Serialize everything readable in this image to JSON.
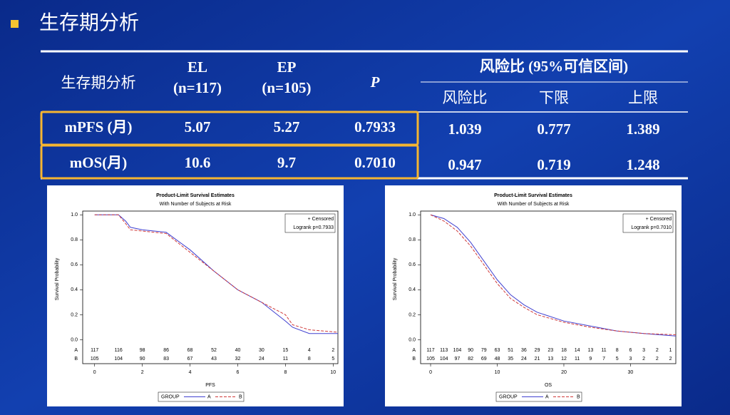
{
  "header": {
    "title": "生存期分析"
  },
  "table": {
    "columns": [
      "生存期分析",
      "EL",
      "EP",
      "P"
    ],
    "column_notes": [
      "(n=117)",
      "(n=105)"
    ],
    "group_header": "风险比 (95%可信区间)",
    "sub_columns": [
      "风险比",
      "下限",
      "上限"
    ],
    "rows": [
      [
        "mPFS (月)",
        "5.07",
        "5.27",
        "0.7933",
        "1.039",
        "0.777",
        "1.389"
      ],
      [
        "mOS(月)",
        "10.6",
        "9.7",
        "0.7010",
        "0.947",
        "0.719",
        "1.248"
      ]
    ]
  },
  "chart_data": [
    {
      "type": "line",
      "title": "Product-Limit Survival Estimates",
      "subtitle": "With Number of Subjects at Risk",
      "x_label": "PFS",
      "y_label": "Survival Probability",
      "xlim": [
        -0.5,
        10.2
      ],
      "xticks": [
        0,
        2,
        4,
        6,
        8,
        10
      ],
      "ylim": [
        -0.06,
        1.03
      ],
      "yticks": [
        {
          "value": 0,
          "label": "0.0"
        },
        0.2,
        0.4,
        0.6,
        0.8,
        {
          "value": 1,
          "label": "1.0"
        }
      ],
      "x": [
        0,
        1,
        1.3,
        1.5,
        2,
        3,
        4,
        5,
        6,
        7,
        8,
        8.3,
        9,
        10.2
      ],
      "series": [
        {
          "name": "A",
          "color": "#4040d0",
          "dashed": false,
          "values": [
            1,
            1,
            0.95,
            0.9,
            0.88,
            0.86,
            0.72,
            0.55,
            0.4,
            0.3,
            0.15,
            0.1,
            0.05,
            0.05
          ]
        },
        {
          "name": "B",
          "color": "#d03a3a",
          "dashed": true,
          "values": [
            1,
            1,
            0.93,
            0.88,
            0.87,
            0.85,
            0.7,
            0.55,
            0.4,
            0.3,
            0.2,
            0.12,
            0.08,
            0.06
          ]
        }
      ],
      "legend_title": "GROUP",
      "annotations": [
        "+ Censored",
        "Logrank p=0.7933"
      ],
      "risk_table": {
        "x": [
          0,
          1,
          2,
          3,
          4,
          5,
          6,
          7,
          8,
          9,
          10
        ],
        "rows": [
          [
            117,
            116,
            98,
            86,
            68,
            52,
            40,
            30,
            15,
            4,
            2
          ],
          [
            105,
            104,
            90,
            83,
            67,
            43,
            32,
            24,
            11,
            8,
            5
          ]
        ]
      }
    },
    {
      "type": "line",
      "title": "Product-Limit Survival Estimates",
      "subtitle": "With Number of Subjects at Risk",
      "x_label": "OS",
      "y_label": "Survival Probability",
      "xlim": [
        -1.5,
        36.8
      ],
      "xticks": [
        0,
        10,
        20,
        30
      ],
      "ylim": [
        -0.06,
        1.03
      ],
      "yticks": [
        {
          "value": 0,
          "label": "0.0"
        },
        0.2,
        0.4,
        0.6,
        0.8,
        {
          "value": 1,
          "label": "1.0"
        }
      ],
      "x": [
        0,
        2,
        4,
        6,
        8,
        10,
        12,
        14,
        16,
        20,
        24,
        28,
        32,
        36.8
      ],
      "series": [
        {
          "name": "A",
          "color": "#4040d0",
          "dashed": false,
          "values": [
            1,
            0.97,
            0.9,
            0.78,
            0.63,
            0.48,
            0.36,
            0.28,
            0.22,
            0.15,
            0.11,
            0.07,
            0.05,
            0.03
          ]
        },
        {
          "name": "B",
          "color": "#d03a3a",
          "dashed": true,
          "values": [
            1,
            0.95,
            0.87,
            0.75,
            0.6,
            0.45,
            0.33,
            0.26,
            0.2,
            0.14,
            0.1,
            0.07,
            0.05,
            0.04
          ]
        }
      ],
      "legend_title": "GROUP",
      "annotations": [
        "+ Censored",
        "Logrank p=0.7010"
      ],
      "risk_table": {
        "x": [
          0,
          2,
          4,
          6,
          8,
          10,
          12,
          14,
          16,
          18,
          20,
          22,
          24,
          26,
          28,
          30,
          32,
          34,
          36
        ],
        "rows": [
          [
            117,
            113,
            104,
            90,
            79,
            63,
            51,
            36,
            29,
            23,
            18,
            14,
            13,
            11,
            8,
            6,
            3,
            2,
            1
          ],
          [
            105,
            104,
            97,
            82,
            69,
            48,
            35,
            24,
            21,
            13,
            12,
            11,
            9,
            7,
            5,
            3,
            2,
            2,
            2
          ]
        ]
      }
    }
  ]
}
